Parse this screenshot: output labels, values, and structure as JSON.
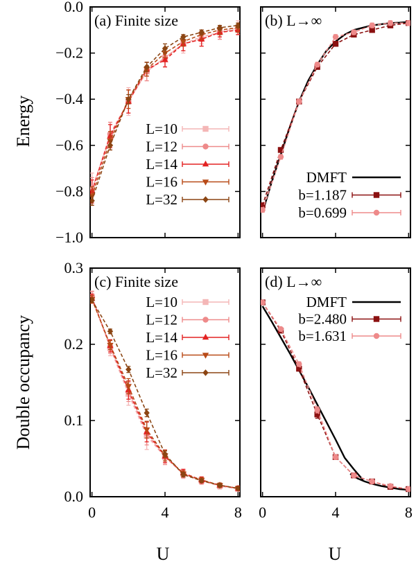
{
  "colors": {
    "L10": "#f4b6b6",
    "L12": "#ee8a8a",
    "L14": "#e32222",
    "L16": "#b84a17",
    "L32": "#8b4513",
    "dmft": "#000000",
    "b_dark": "#8b1010",
    "b_light": "#ee8a8a"
  },
  "labels": {
    "ylabel_top": "Energy",
    "ylabel_bottom": "Double occupancy",
    "xlabel_left": "U",
    "xlabel_right": "U"
  },
  "chart_data": [
    {
      "id": "a",
      "type": "line",
      "title": "(a) Finite size",
      "xlabel": "U",
      "ylabel": "Energy",
      "xlim": [
        -0.1,
        8.1
      ],
      "ylim": [
        -1.0,
        0.0
      ],
      "xticks": [
        0,
        4,
        8
      ],
      "yticks": [
        0.0,
        -0.2,
        -0.4,
        -0.6,
        -0.8,
        -1.0
      ],
      "ytick_labels": [
        "0.0",
        "−0.2",
        "−0.4",
        "−0.6",
        "−0.8",
        "−1.0"
      ],
      "legend_position": "right",
      "series": [
        {
          "name": "L=10",
          "marker": "square",
          "color": "#f4b6b6",
          "x": [
            0,
            1,
            2,
            3,
            4,
            5,
            6,
            7,
            8
          ],
          "y": [
            -0.79,
            -0.56,
            -0.41,
            -0.28,
            -0.22,
            -0.16,
            -0.13,
            -0.11,
            -0.09
          ],
          "err": [
            0.07,
            0.06,
            0.06,
            0.04,
            0.04,
            0.04,
            0.03,
            0.03,
            0.03
          ]
        },
        {
          "name": "L=12",
          "marker": "circle",
          "color": "#ee8a8a",
          "x": [
            0,
            1,
            2,
            3,
            4,
            5,
            6,
            7,
            8
          ],
          "y": [
            -0.8,
            -0.55,
            -0.41,
            -0.28,
            -0.22,
            -0.16,
            -0.14,
            -0.11,
            -0.1
          ],
          "err": [
            0.06,
            0.05,
            0.05,
            0.04,
            0.04,
            0.03,
            0.03,
            0.03,
            0.02
          ]
        },
        {
          "name": "L=14",
          "marker": "triangle-up",
          "color": "#e32222",
          "x": [
            0,
            1,
            2,
            3,
            4,
            5,
            6,
            7,
            8
          ],
          "y": [
            -0.8,
            -0.56,
            -0.41,
            -0.27,
            -0.23,
            -0.16,
            -0.14,
            -0.11,
            -0.1
          ],
          "err": [
            0.05,
            0.05,
            0.05,
            0.03,
            0.03,
            0.03,
            0.03,
            0.02,
            0.02
          ]
        },
        {
          "name": "L=16",
          "marker": "triangle-down",
          "color": "#b84a17",
          "x": [
            0,
            1,
            2,
            3,
            4,
            5,
            6,
            7,
            8
          ],
          "y": [
            -0.82,
            -0.58,
            -0.4,
            -0.27,
            -0.2,
            -0.15,
            -0.12,
            -0.1,
            -0.09
          ],
          "err": [
            0.04,
            0.04,
            0.04,
            0.03,
            0.02,
            0.02,
            0.02,
            0.02,
            0.02
          ]
        },
        {
          "name": "L=32",
          "marker": "diamond",
          "color": "#8b4513",
          "x": [
            0,
            1,
            2,
            3,
            4,
            5,
            6,
            7,
            8
          ],
          "y": [
            -0.84,
            -0.6,
            -0.4,
            -0.26,
            -0.18,
            -0.13,
            -0.11,
            -0.09,
            -0.08
          ],
          "err": [
            0.02,
            0.02,
            0.02,
            0.02,
            0.02,
            0.01,
            0.01,
            0.01,
            0.01
          ]
        }
      ]
    },
    {
      "id": "b",
      "type": "line",
      "title": "(b) L→∞",
      "xlabel": "U",
      "xlim": [
        -0.1,
        8.1
      ],
      "ylim": [
        -1.0,
        0.0
      ],
      "xticks": [
        0,
        4,
        8
      ],
      "legend_position": "bottom-right",
      "series": [
        {
          "name": "DMFT",
          "kind": "curve",
          "color": "#000000",
          "x": [
            0,
            0.5,
            1,
            1.5,
            2,
            2.5,
            3,
            3.5,
            4,
            4.5,
            5,
            5.5,
            6,
            6.5,
            7,
            7.5,
            8
          ],
          "y": [
            -0.89,
            -0.76,
            -0.64,
            -0.52,
            -0.41,
            -0.32,
            -0.25,
            -0.19,
            -0.15,
            -0.12,
            -0.1,
            -0.09,
            -0.08,
            -0.075,
            -0.07,
            -0.068,
            -0.065
          ]
        },
        {
          "name": "b=1.187",
          "marker": "square",
          "color": "#8b1010",
          "x": [
            0,
            1,
            2,
            3,
            4,
            5,
            6,
            7,
            8
          ],
          "y": [
            -0.86,
            -0.62,
            -0.41,
            -0.26,
            -0.16,
            -0.12,
            -0.1,
            -0.08,
            -0.07
          ],
          "err": [
            0.01,
            0.01,
            0.01,
            0.01,
            0.01,
            0.01,
            0.01,
            0.01,
            0.01
          ]
        },
        {
          "name": "b=0.699",
          "marker": "circle",
          "color": "#ee8a8a",
          "x": [
            0,
            1,
            2,
            3,
            4,
            5,
            6,
            7,
            8
          ],
          "y": [
            -0.88,
            -0.65,
            -0.41,
            -0.25,
            -0.13,
            -0.11,
            -0.08,
            -0.07,
            -0.07
          ],
          "err": [
            0.01,
            0.01,
            0.01,
            0.01,
            0.01,
            0.01,
            0.01,
            0.01,
            0.01
          ]
        }
      ]
    },
    {
      "id": "c",
      "type": "line",
      "title": "(c) Finite size",
      "xlabel": "U",
      "ylabel": "Double occupancy",
      "xlim": [
        -0.1,
        8.1
      ],
      "ylim": [
        0.0,
        0.3
      ],
      "xticks": [
        0,
        4,
        8
      ],
      "yticks": [
        0.0,
        0.1,
        0.2,
        0.3
      ],
      "ytick_labels": [
        "0.0",
        "0.1",
        "0.2",
        "0.3"
      ],
      "legend_position": "right",
      "series": [
        {
          "name": "L=10",
          "marker": "square",
          "color": "#f4b6b6",
          "x": [
            0,
            1,
            2,
            3,
            4,
            5,
            6,
            7,
            8
          ],
          "y": [
            0.262,
            0.195,
            0.135,
            0.08,
            0.052,
            0.03,
            0.021,
            0.014,
            0.01
          ],
          "err": [
            0.008,
            0.01,
            0.015,
            0.018,
            0.01,
            0.006,
            0.005,
            0.004,
            0.003
          ]
        },
        {
          "name": "L=12",
          "marker": "circle",
          "color": "#ee8a8a",
          "x": [
            0,
            1,
            2,
            3,
            4,
            5,
            6,
            7,
            8
          ],
          "y": [
            0.262,
            0.197,
            0.138,
            0.083,
            0.052,
            0.03,
            0.021,
            0.015,
            0.011
          ],
          "err": [
            0.007,
            0.009,
            0.013,
            0.015,
            0.009,
            0.005,
            0.004,
            0.003,
            0.003
          ]
        },
        {
          "name": "L=14",
          "marker": "triangle-up",
          "color": "#e32222",
          "x": [
            0,
            1,
            2,
            3,
            4,
            5,
            6,
            7,
            8
          ],
          "y": [
            0.26,
            0.198,
            0.14,
            0.085,
            0.053,
            0.031,
            0.022,
            0.015,
            0.011
          ],
          "err": [
            0.006,
            0.008,
            0.012,
            0.013,
            0.008,
            0.005,
            0.004,
            0.003,
            0.003
          ]
        },
        {
          "name": "L=16",
          "marker": "triangle-down",
          "color": "#b84a17",
          "x": [
            0,
            1,
            2,
            3,
            4,
            5,
            6,
            7,
            8
          ],
          "y": [
            0.259,
            0.199,
            0.145,
            0.088,
            0.054,
            0.03,
            0.022,
            0.015,
            0.011
          ],
          "err": [
            0.005,
            0.006,
            0.01,
            0.011,
            0.007,
            0.004,
            0.003,
            0.003,
            0.002
          ]
        },
        {
          "name": "L=32",
          "marker": "diamond",
          "color": "#8b4513",
          "x": [
            0,
            1,
            2,
            3,
            4,
            5,
            6,
            7,
            8
          ],
          "y": [
            0.258,
            0.217,
            0.167,
            0.11,
            0.056,
            0.029,
            0.021,
            0.015,
            0.011
          ],
          "err": [
            0.003,
            0.003,
            0.004,
            0.005,
            0.004,
            0.003,
            0.002,
            0.002,
            0.002
          ]
        }
      ]
    },
    {
      "id": "d",
      "type": "line",
      "title": "(d) L→∞",
      "xlabel": "U",
      "xlim": [
        -0.1,
        8.1
      ],
      "ylim": [
        0.0,
        0.3
      ],
      "xticks": [
        0,
        4,
        8
      ],
      "legend_position": "top-right",
      "series": [
        {
          "name": "DMFT",
          "kind": "curve",
          "color": "#000000",
          "x": [
            0,
            0.5,
            1,
            1.5,
            2,
            2.5,
            3,
            3.5,
            4,
            4.5,
            5,
            5.5
          ],
          "y": [
            0.25,
            0.23,
            0.209,
            0.188,
            0.166,
            0.144,
            0.121,
            0.098,
            0.075,
            0.051,
            0.036,
            0.022
          ],
          "x2": [
            4.8,
            5.2,
            5.6,
            6.0,
            6.5,
            7.0,
            7.5,
            8.0
          ],
          "y2": [
            0.03,
            0.024,
            0.02,
            0.017,
            0.014,
            0.012,
            0.01,
            0.009
          ]
        },
        {
          "name": "b=2.480",
          "marker": "square",
          "color": "#8b1010",
          "x": [
            0,
            1,
            2,
            3,
            4,
            5,
            6,
            7,
            8
          ],
          "y": [
            0.255,
            0.218,
            0.168,
            0.108,
            0.052,
            0.028,
            0.02,
            0.013,
            0.01
          ],
          "err": [
            0.002,
            0.002,
            0.003,
            0.005,
            0.003,
            0.002,
            0.002,
            0.002,
            0.002
          ]
        },
        {
          "name": "b=1.631",
          "marker": "circle",
          "color": "#ee8a8a",
          "x": [
            0,
            1,
            2,
            3,
            4,
            5,
            6,
            7,
            8
          ],
          "y": [
            0.255,
            0.22,
            0.174,
            0.114,
            0.052,
            0.028,
            0.02,
            0.014,
            0.01
          ],
          "err": [
            0.002,
            0.002,
            0.003,
            0.004,
            0.003,
            0.002,
            0.002,
            0.002,
            0.002
          ]
        }
      ]
    }
  ]
}
